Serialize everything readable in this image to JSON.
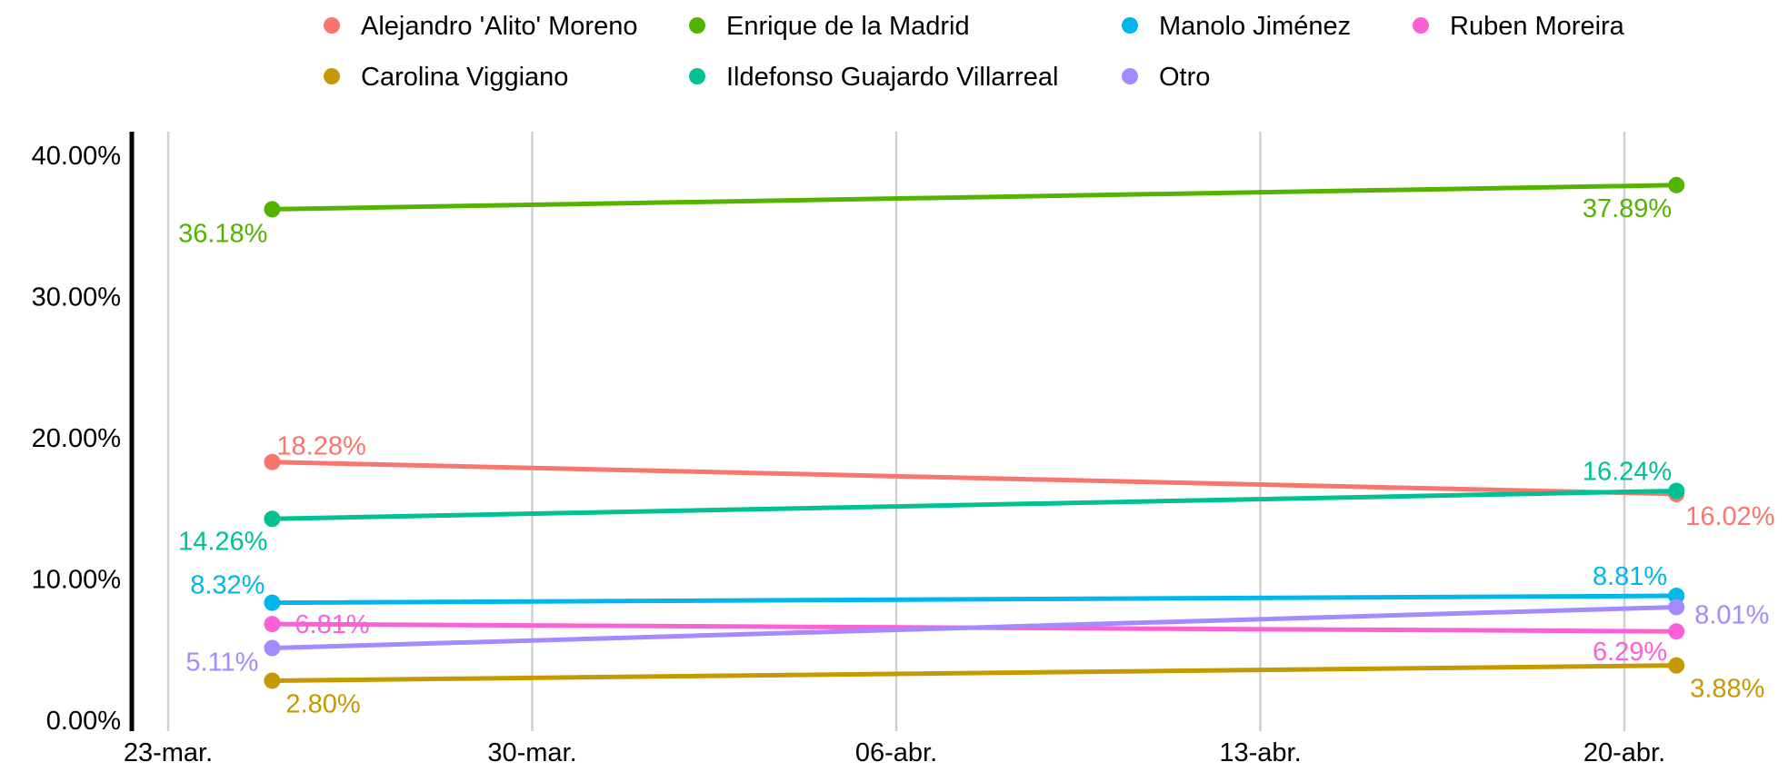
{
  "chart_data": {
    "type": "line",
    "title": "",
    "xlabel": "",
    "ylabel": "",
    "x_ticks": [
      "23-mar.",
      "30-mar.",
      "06-abr.",
      "13-abr.",
      "20-abr."
    ],
    "y_ticks": [
      "0.00%",
      "10.00%",
      "20.00%",
      "30.00%",
      "40.00%"
    ],
    "y_range": [
      0,
      42
    ],
    "x_range": [
      "2023-03-22",
      "2023-04-23"
    ],
    "grid": "vertical lines",
    "legend_position": "top",
    "x": [
      "2023-03-25",
      "2023-04-21"
    ],
    "series": [
      {
        "name": "Alejandro 'Alito' Moreno",
        "color": "#F8766D",
        "values": [
          18.28,
          16.02
        ],
        "labels": [
          "18.28%",
          "16.02%"
        ]
      },
      {
        "name": "Enrique de la Madrid",
        "color": "#53B400",
        "values": [
          36.18,
          37.89
        ],
        "labels": [
          "36.18%",
          "37.89%"
        ]
      },
      {
        "name": "Manolo Jiménez",
        "color": "#00B6EB",
        "values": [
          8.32,
          8.81
        ],
        "labels": [
          "8.32%",
          "8.81%"
        ]
      },
      {
        "name": "Ruben Moreira",
        "color": "#FB61D7",
        "values": [
          6.81,
          6.29
        ],
        "labels": [
          "6.81%",
          "6.29%"
        ]
      },
      {
        "name": "Carolina Viggiano",
        "color": "#C49A00",
        "values": [
          2.8,
          3.88
        ],
        "labels": [
          "2.80%",
          "3.88%"
        ]
      },
      {
        "name": "Ildefonso Guajardo Villarreal",
        "color": "#00C094",
        "values": [
          14.26,
          16.24
        ],
        "labels": [
          "14.26%",
          "16.24%"
        ]
      },
      {
        "name": "Otro",
        "color": "#A58AFF",
        "values": [
          5.11,
          8.01
        ],
        "labels": [
          "5.11%",
          "8.01%"
        ]
      }
    ]
  }
}
